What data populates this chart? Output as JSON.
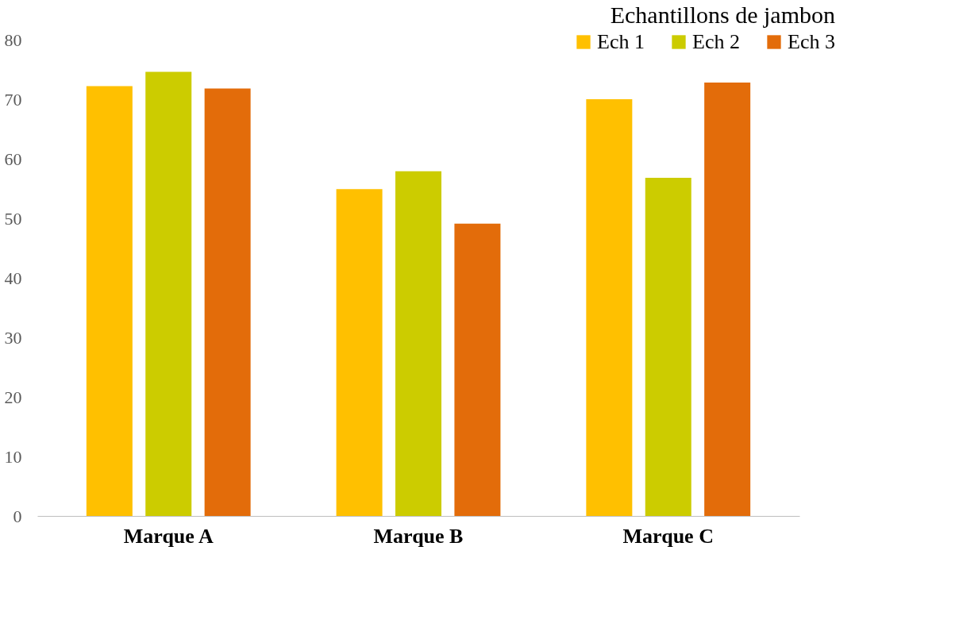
{
  "chart_data": {
    "type": "bar",
    "legend_title": "Echantillons de jambon",
    "categories": [
      "Marque A",
      "Marque B",
      "Marque C"
    ],
    "series": [
      {
        "name": "Ech 1",
        "color": "#ffc000",
        "values": [
          72.2,
          54.9,
          70.0
        ]
      },
      {
        "name": "Ech 2",
        "color": "#cccc00",
        "values": [
          74.6,
          57.9,
          56.8
        ]
      },
      {
        "name": "Ech 3",
        "color": "#e36c0a",
        "values": [
          71.8,
          49.1,
          72.8
        ]
      }
    ],
    "ylim": [
      0,
      80
    ],
    "yticks": [
      0,
      10,
      20,
      30,
      40,
      50,
      60,
      70,
      80
    ],
    "grid": false,
    "legend": "top right"
  }
}
